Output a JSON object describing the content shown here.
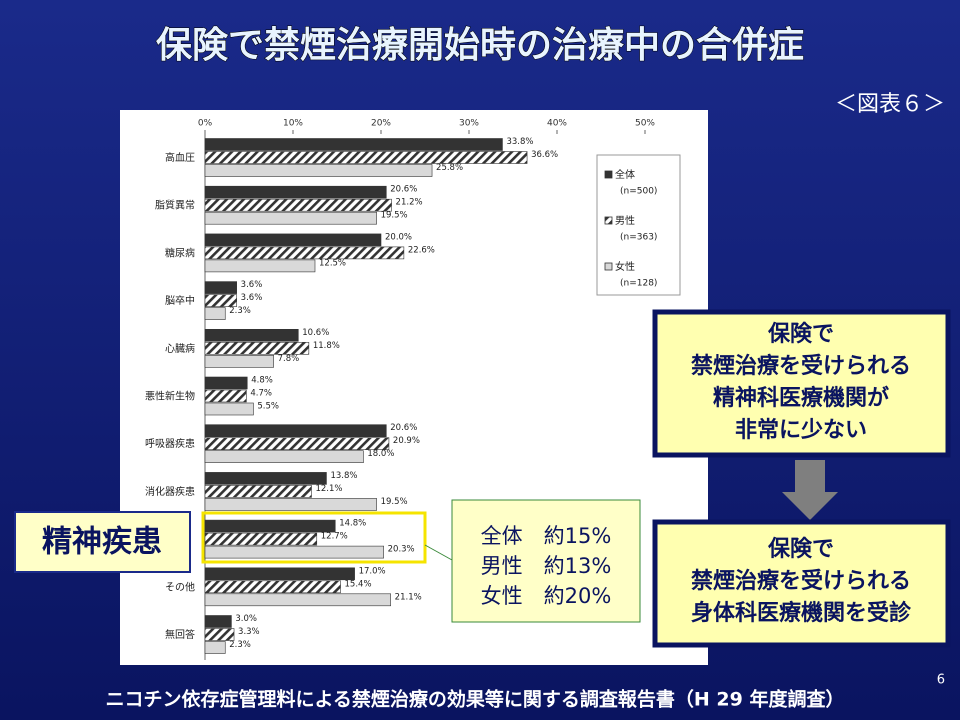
{
  "slide": {
    "title": "保険で禁煙治療開始時の治療中の合併症",
    "figure_label": "＜図表６＞",
    "highlight_label": "精神疾患",
    "summary": [
      "全体　約15%",
      "男性　約13%",
      "女性　約20%"
    ],
    "box1": [
      "保険で",
      "禁煙治療を受けられる",
      "精神科医療機関が",
      "非常に少ない"
    ],
    "box2": [
      "保険で",
      "禁煙治療を受けられる",
      "身体科医療機関を受診"
    ],
    "footer": "ニコチン依存症管理料による禁煙治療の効果等に関する調査報告書（H 29 年度調査）",
    "page": "6"
  },
  "chart_data": {
    "type": "hbar",
    "categories": [
      "高血圧",
      "脂質異常",
      "糖尿病",
      "脳卒中",
      "心臓病",
      "悪性新生物",
      "呼吸器疾患",
      "消化器疾患",
      null,
      "その他",
      "無回答"
    ],
    "series": [
      {
        "name": "全体",
        "sample": "(n=500)",
        "color": "#333333",
        "pattern": "solid",
        "values": [
          33.8,
          20.6,
          20.0,
          3.6,
          10.6,
          4.8,
          20.6,
          13.8,
          14.8,
          17.0,
          3.0
        ],
        "value_labels": [
          "33.8%",
          "20.6%",
          "20.0%",
          "3.6%",
          "10.6%",
          "4.8%",
          "20.6%",
          "13.8%",
          "14.8%",
          "17.0%",
          "3.0%"
        ]
      },
      {
        "name": "男性",
        "sample": "(n=363)",
        "color": "#333333",
        "pattern": "hatch",
        "values": [
          36.6,
          21.2,
          22.6,
          3.6,
          11.8,
          4.7,
          20.9,
          12.1,
          12.7,
          15.4,
          3.3
        ],
        "value_labels": [
          "36.6%",
          "21.2%",
          "22.6%",
          "3.6%",
          "11.8%",
          "4.7%",
          "20.9%",
          "12.1%",
          "12.7%",
          "15.4%",
          "3.3%"
        ]
      },
      {
        "name": "女性",
        "sample": "(n=128)",
        "color": "#d9d9d9",
        "pattern": "solid",
        "values": [
          25.8,
          19.5,
          12.5,
          2.3,
          7.8,
          5.5,
          18.0,
          19.5,
          20.3,
          21.1,
          2.3
        ],
        "value_labels": [
          "25.8%",
          "19.5%",
          "12.5%",
          "2.3%",
          "7.8%",
          "5.5%",
          "18.0%",
          "19.5%",
          "20.3%",
          "21.1%",
          "2.3%"
        ]
      }
    ],
    "xlim": [
      0,
      50
    ],
    "xticks": [
      {
        "value": 0,
        "label": "0%"
      },
      {
        "value": 10,
        "label": "10%"
      },
      {
        "value": 20,
        "label": "20%"
      },
      {
        "value": 30,
        "label": "30%"
      },
      {
        "value": 40,
        "label": "40%"
      },
      {
        "value": 50,
        "label": "50%"
      }
    ],
    "legend": "upper right"
  }
}
